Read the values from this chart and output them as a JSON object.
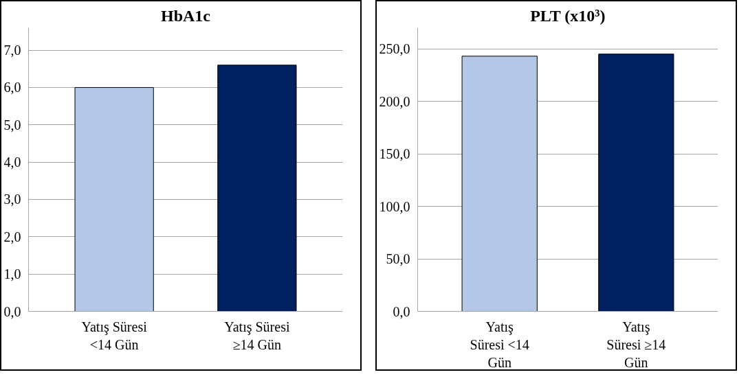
{
  "chart_data": [
    {
      "type": "bar",
      "title": "HbA1c",
      "categories": [
        "Yatış Süresi\n<14 Gün",
        "Yatış Süresi\n≥14 Gün"
      ],
      "values": [
        6.0,
        6.6
      ],
      "colors": [
        "#b4c7e7",
        "#002060"
      ],
      "ylim": [
        0,
        7.6
      ],
      "yticks": [
        {
          "value": 0,
          "label": "0,0"
        },
        {
          "value": 1,
          "label": "1,0"
        },
        {
          "value": 2,
          "label": "2,0"
        },
        {
          "value": 3,
          "label": "3,0"
        },
        {
          "value": 4,
          "label": "4,0"
        },
        {
          "value": 5,
          "label": "5,0"
        },
        {
          "value": 6,
          "label": "6,0"
        },
        {
          "value": 7,
          "label": "7,0"
        }
      ],
      "grid": "y"
    },
    {
      "type": "bar",
      "title": "PLT (x10³)",
      "categories": [
        "Yatış\nSüresi <14\nGün",
        "Yatış\nSüresi ≥14\nGün"
      ],
      "values": [
        243,
        245
      ],
      "colors": [
        "#b4c7e7",
        "#002060"
      ],
      "ylim": [
        0,
        270
      ],
      "yticks": [
        {
          "value": 0,
          "label": "0,0"
        },
        {
          "value": 50,
          "label": "50,0"
        },
        {
          "value": 100,
          "label": "100,0"
        },
        {
          "value": 150,
          "label": "150,0"
        },
        {
          "value": 200,
          "label": "200,0"
        },
        {
          "value": 250,
          "label": "250,0"
        }
      ],
      "grid": "y"
    }
  ]
}
